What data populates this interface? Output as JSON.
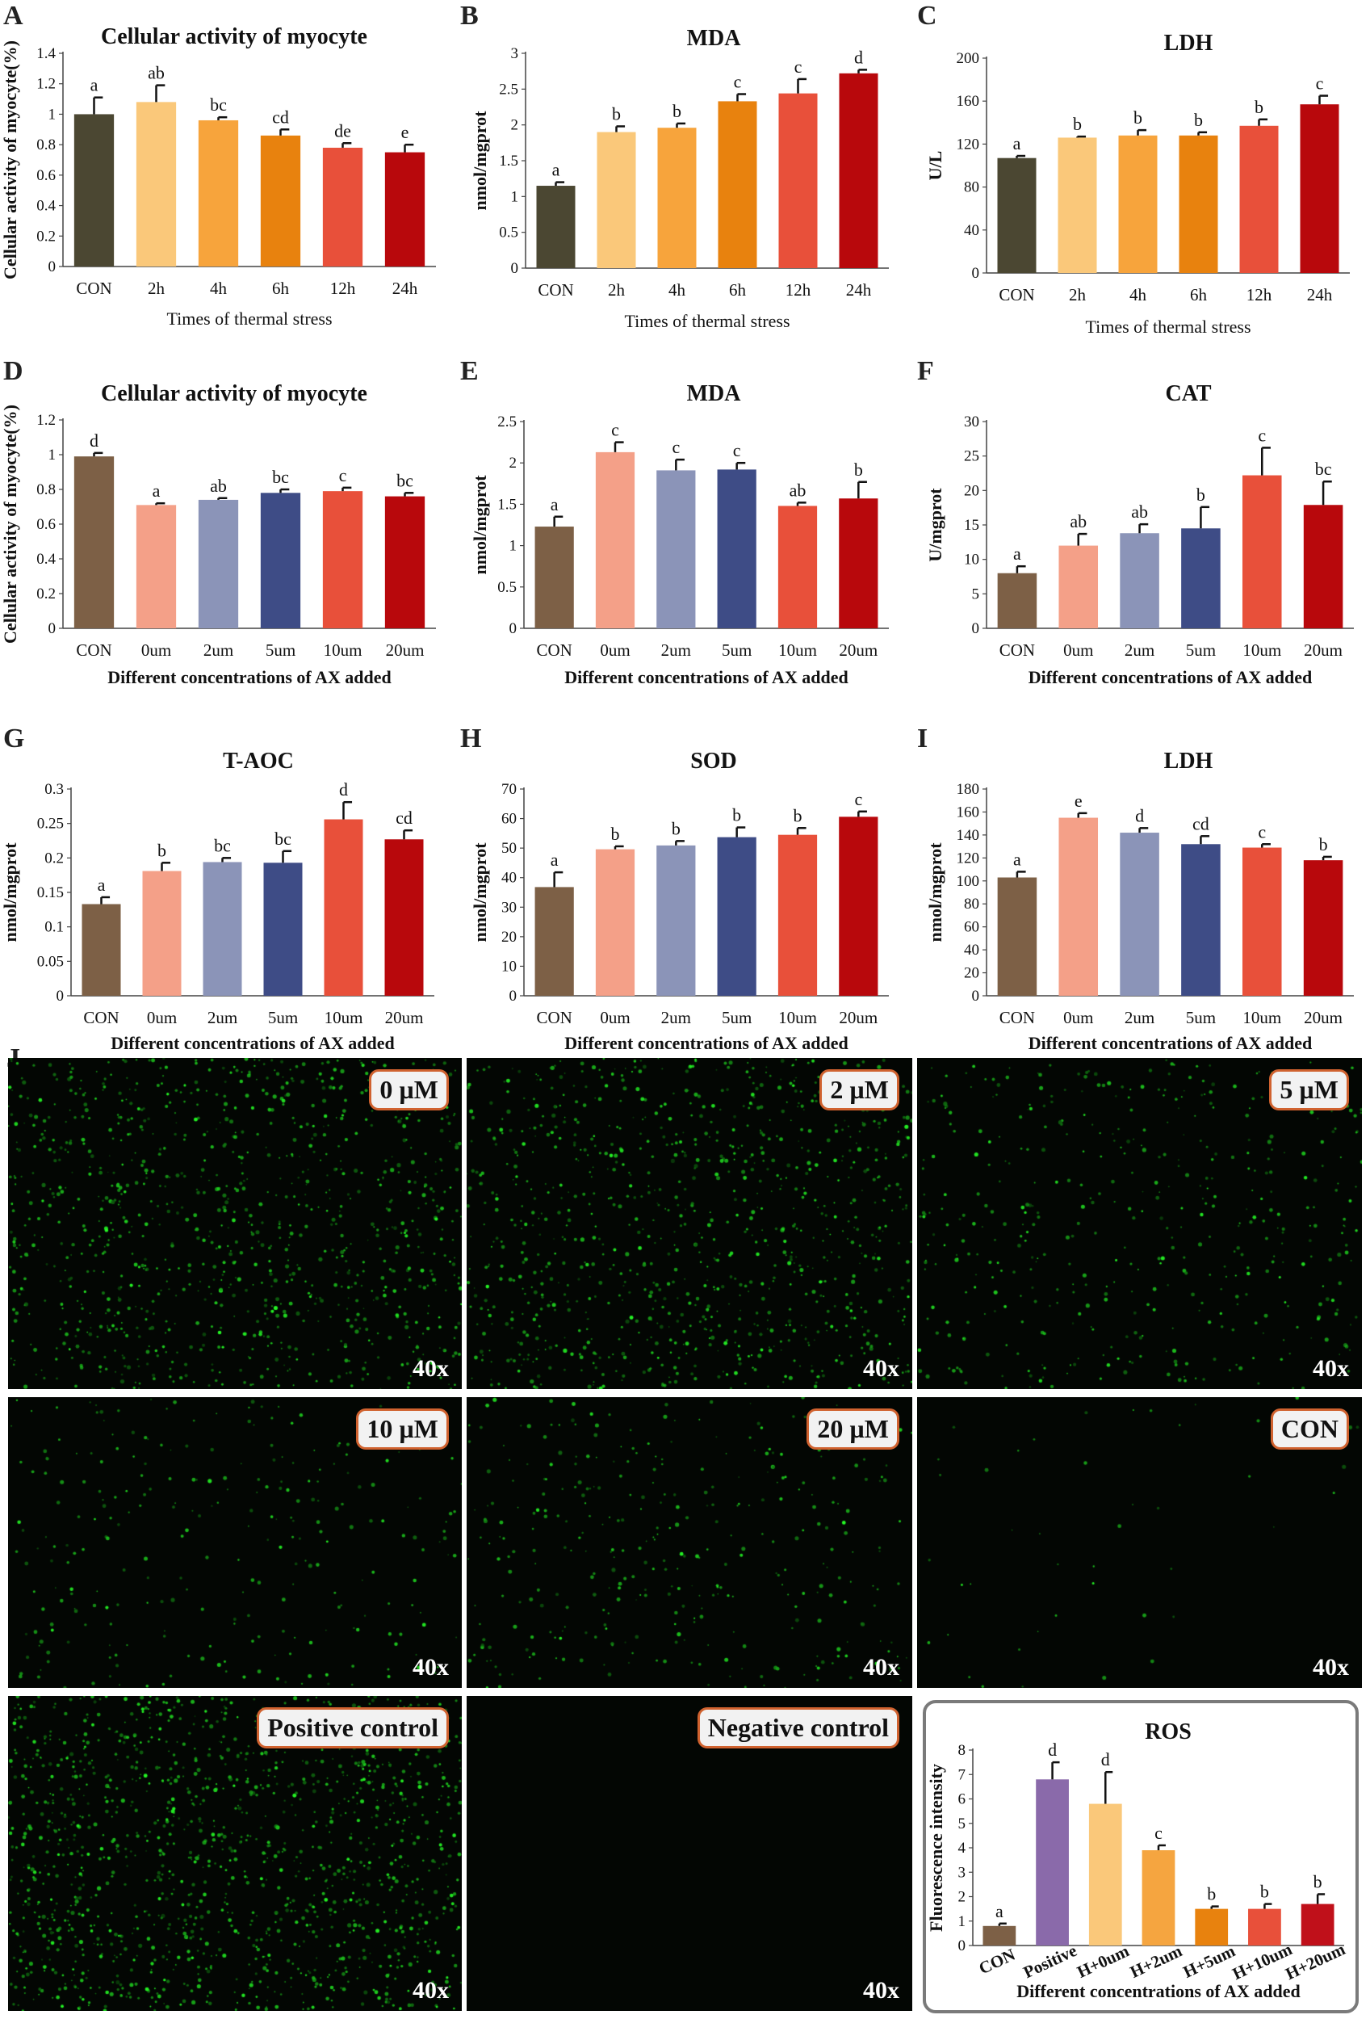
{
  "panel_letters": [
    "A",
    "B",
    "C",
    "D",
    "E",
    "F",
    "G",
    "H",
    "I",
    "J"
  ],
  "chart_data": [
    {
      "id": "A",
      "type": "bar",
      "title": "Cellular activity of myocyte",
      "ylabel": "Cellular activity of myocyte(%)",
      "xlabel": "Times of thermal stress",
      "categories": [
        "CON",
        "2h",
        "4h",
        "6h",
        "12h",
        "24h"
      ],
      "values": [
        1.0,
        1.08,
        0.96,
        0.86,
        0.78,
        0.75
      ],
      "errors": [
        0.11,
        0.11,
        0.02,
        0.04,
        0.03,
        0.05
      ],
      "labels": [
        "a",
        "ab",
        "bc",
        "cd",
        "de",
        "e"
      ],
      "ylim": [
        0,
        1.4
      ],
      "yticks": [
        "0",
        "0.2",
        "0.4",
        "0.6",
        "0.8",
        "1",
        "1.2",
        "1.4"
      ],
      "colors": [
        "#4b4732",
        "#fac87a",
        "#f7a43c",
        "#e8820e",
        "#e8503a",
        "#b8080c"
      ]
    },
    {
      "id": "B",
      "type": "bar",
      "title": "MDA",
      "ylabel": "nmol/mgprot",
      "xlabel": "Times of thermal stress",
      "categories": [
        "CON",
        "2h",
        "4h",
        "6h",
        "12h",
        "24h"
      ],
      "values": [
        1.15,
        1.9,
        1.96,
        2.33,
        2.44,
        2.72
      ],
      "errors": [
        0.05,
        0.08,
        0.06,
        0.1,
        0.2,
        0.05
      ],
      "labels": [
        "a",
        "b",
        "b",
        "c",
        "c",
        "d"
      ],
      "ylim": [
        0,
        3
      ],
      "yticks": [
        "0",
        "0.5",
        "1",
        "1.5",
        "2",
        "2.5",
        "3"
      ],
      "colors": [
        "#4b4732",
        "#fac87a",
        "#f7a43c",
        "#e8820e",
        "#e8503a",
        "#b8080c"
      ]
    },
    {
      "id": "C",
      "type": "bar",
      "title": "LDH",
      "ylabel": "U/L",
      "xlabel": "Times of thermal stress",
      "categories": [
        "CON",
        "2h",
        "4h",
        "6h",
        "12h",
        "24h"
      ],
      "values": [
        107,
        126,
        128,
        128,
        137,
        157
      ],
      "errors": [
        2,
        1,
        5,
        3,
        6,
        8
      ],
      "labels": [
        "a",
        "b",
        "b",
        "b",
        "b",
        "c"
      ],
      "ylim": [
        0,
        200
      ],
      "yticks": [
        "0",
        "40",
        "80",
        "120",
        "160",
        "200"
      ],
      "colors": [
        "#4b4732",
        "#fac87a",
        "#f7a43c",
        "#e8820e",
        "#e8503a",
        "#b8080c"
      ]
    },
    {
      "id": "D",
      "type": "bar",
      "title": "Cellular activity of myocyte",
      "ylabel": "Cellular activity of myocyte(%)",
      "xlabel": "Different concentrations of AX added",
      "categories": [
        "CON",
        "0um",
        "2um",
        "5um",
        "10um",
        "20um"
      ],
      "values": [
        0.99,
        0.71,
        0.74,
        0.78,
        0.79,
        0.76
      ],
      "errors": [
        0.02,
        0.01,
        0.01,
        0.02,
        0.02,
        0.02
      ],
      "labels": [
        "d",
        "a",
        "ab",
        "bc",
        "c",
        "bc"
      ],
      "ylim": [
        0,
        1.2
      ],
      "yticks": [
        "0",
        "0.2",
        "0.4",
        "0.6",
        "0.8",
        "1",
        "1.2"
      ],
      "colors": [
        "#7d6046",
        "#f4a088",
        "#8b94b8",
        "#3e4c86",
        "#e8503a",
        "#b8080c"
      ]
    },
    {
      "id": "E",
      "type": "bar",
      "title": "MDA",
      "ylabel": "nmol/mgprot",
      "xlabel": "Different concentrations of AX added",
      "categories": [
        "CON",
        "0um",
        "2um",
        "5um",
        "10um",
        "20um"
      ],
      "values": [
        1.23,
        2.13,
        1.91,
        1.92,
        1.48,
        1.57
      ],
      "errors": [
        0.12,
        0.12,
        0.13,
        0.08,
        0.04,
        0.2
      ],
      "labels": [
        "a",
        "c",
        "c",
        "c",
        "ab",
        "b"
      ],
      "ylim": [
        0,
        2.5
      ],
      "yticks": [
        "0",
        "0.5",
        "1",
        "1.5",
        "2",
        "2.5"
      ],
      "colors": [
        "#7d6046",
        "#f4a088",
        "#8b94b8",
        "#3e4c86",
        "#e8503a",
        "#b8080c"
      ]
    },
    {
      "id": "F",
      "type": "bar",
      "title": "CAT",
      "ylabel": "U/mgprot",
      "xlabel": "Different concentrations of AX added",
      "categories": [
        "CON",
        "0um",
        "2um",
        "5um",
        "10um",
        "20um"
      ],
      "values": [
        8.0,
        12.0,
        13.8,
        14.5,
        22.2,
        17.9
      ],
      "errors": [
        1.0,
        1.7,
        1.3,
        3.1,
        4.0,
        3.4
      ],
      "labels": [
        "a",
        "ab",
        "ab",
        "b",
        "c",
        "bc"
      ],
      "ylim": [
        0,
        30
      ],
      "yticks": [
        "0",
        "5",
        "10",
        "15",
        "20",
        "25",
        "30"
      ],
      "colors": [
        "#7d6046",
        "#f4a088",
        "#8b94b8",
        "#3e4c86",
        "#e8503a",
        "#b8080c"
      ]
    },
    {
      "id": "G",
      "type": "bar",
      "title": "T-AOC",
      "ylabel": "nmol/mgprot",
      "xlabel": "Different concentrations of AX added",
      "categories": [
        "CON",
        "0um",
        "2um",
        "5um",
        "10um",
        "20um"
      ],
      "values": [
        0.133,
        0.181,
        0.194,
        0.193,
        0.256,
        0.227
      ],
      "errors": [
        0.01,
        0.012,
        0.006,
        0.017,
        0.025,
        0.013
      ],
      "labels": [
        "a",
        "b",
        "bc",
        "bc",
        "d",
        "cd"
      ],
      "ylim": [
        0,
        0.3
      ],
      "yticks": [
        "0",
        "0.05",
        "0.1",
        "0.15",
        "0.2",
        "0.25",
        "0.3"
      ],
      "colors": [
        "#7d6046",
        "#f4a088",
        "#8b94b8",
        "#3e4c86",
        "#e8503a",
        "#b8080c"
      ]
    },
    {
      "id": "H",
      "type": "bar",
      "title": "SOD",
      "ylabel": "nmol/mgprot",
      "xlabel": "Different concentrations of AX added",
      "categories": [
        "CON",
        "0um",
        "2um",
        "5um",
        "10um",
        "20um"
      ],
      "values": [
        36.8,
        49.6,
        50.9,
        53.7,
        54.5,
        60.6
      ],
      "errors": [
        5.0,
        1.0,
        1.5,
        3.3,
        2.3,
        1.8
      ],
      "labels": [
        "a",
        "b",
        "b",
        "b",
        "b",
        "c"
      ],
      "ylim": [
        0,
        70
      ],
      "yticks": [
        "0",
        "10",
        "20",
        "30",
        "40",
        "50",
        "60",
        "70"
      ],
      "colors": [
        "#7d6046",
        "#f4a088",
        "#8b94b8",
        "#3e4c86",
        "#e8503a",
        "#b8080c"
      ]
    },
    {
      "id": "I",
      "type": "bar",
      "title": "LDH",
      "ylabel": "nmol/mgprot",
      "xlabel": "Different concentrations of AX added",
      "categories": [
        "CON",
        "0um",
        "2um",
        "5um",
        "10um",
        "20um"
      ],
      "values": [
        103,
        155,
        142,
        132,
        129,
        118
      ],
      "errors": [
        5,
        4,
        4,
        7,
        3,
        3
      ],
      "labels": [
        "a",
        "e",
        "d",
        "cd",
        "c",
        "b"
      ],
      "ylim": [
        0,
        180
      ],
      "yticks": [
        "0",
        "20",
        "40",
        "60",
        "80",
        "100",
        "120",
        "140",
        "160",
        "180"
      ],
      "colors": [
        "#7d6046",
        "#f4a088",
        "#8b94b8",
        "#3e4c86",
        "#e8503a",
        "#b8080c"
      ]
    },
    {
      "id": "J-inset",
      "type": "bar",
      "title": "ROS",
      "ylabel": "Fluorescence intensity",
      "xlabel": "Different concentrations of AX added",
      "categories": [
        "CON",
        "Positive",
        "H+0um",
        "H+2um",
        "H+5um",
        "H+10um",
        "H+20um"
      ],
      "values": [
        0.8,
        6.8,
        5.8,
        3.9,
        1.5,
        1.5,
        1.7
      ],
      "errors": [
        0.1,
        0.7,
        1.3,
        0.2,
        0.1,
        0.2,
        0.4
      ],
      "labels": [
        "a",
        "d",
        "d",
        "c",
        "b",
        "b",
        "b"
      ],
      "ylim": [
        0,
        8
      ],
      "yticks": [
        "0",
        "1",
        "2",
        "3",
        "4",
        "5",
        "6",
        "7",
        "8"
      ],
      "colors": [
        "#7d6046",
        "#8a6aaa",
        "#fac87a",
        "#f5a540",
        "#e8820e",
        "#e8503a",
        "#c0101a"
      ]
    }
  ],
  "micrographs": [
    {
      "label": "0 µM",
      "magnification": "40x",
      "density": 1.0
    },
    {
      "label": "2 µM",
      "magnification": "40x",
      "density": 0.95
    },
    {
      "label": "5 µM",
      "magnification": "40x",
      "density": 0.45
    },
    {
      "label": "10 µM",
      "magnification": "40x",
      "density": 0.3
    },
    {
      "label": "20 µM",
      "magnification": "40x",
      "density": 0.4
    },
    {
      "label": "CON",
      "magnification": "40x",
      "density": 0.05
    },
    {
      "label": "Positive control",
      "magnification": "40x",
      "density": 1.4
    },
    {
      "label": "Negative control",
      "magnification": "40x",
      "density": 0.0
    }
  ]
}
